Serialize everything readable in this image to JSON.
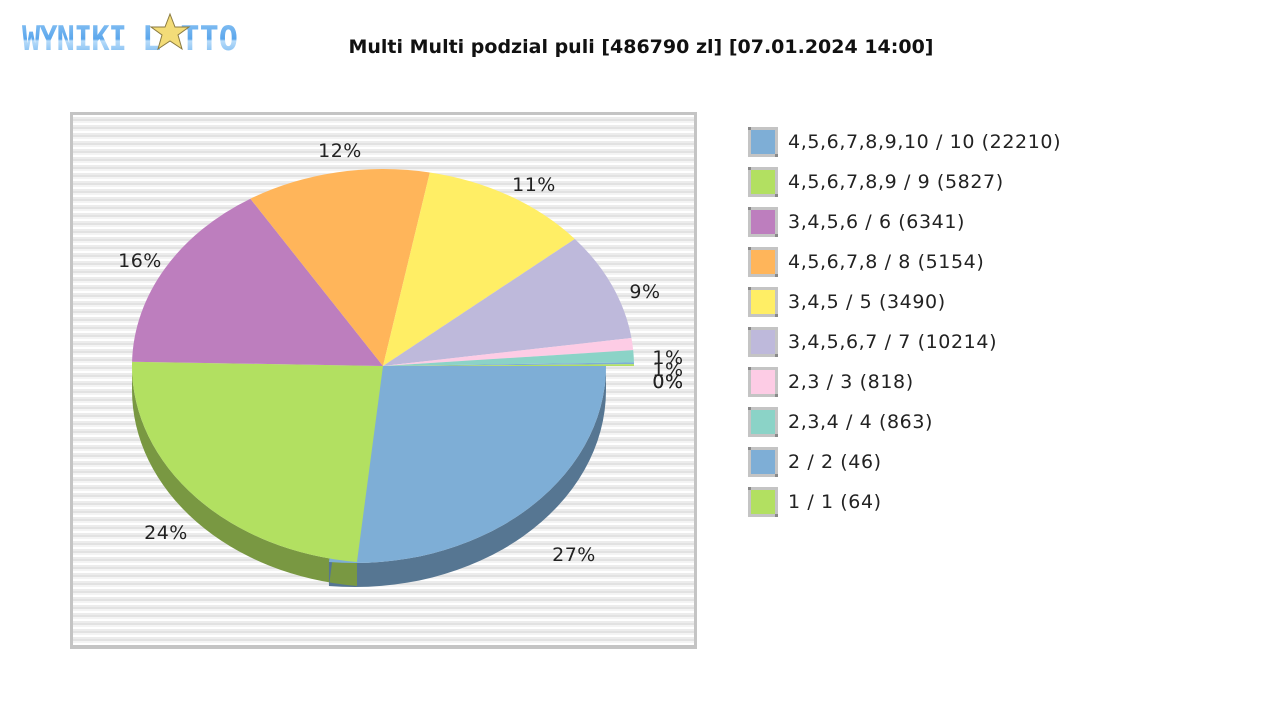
{
  "header": {
    "logo_text": "WYNIKI LOTTO",
    "title": "Multi Multi podzial puli [486790 zl] [07.01.2024 14:00]"
  },
  "chart_data": {
    "type": "pie",
    "title": "Multi Multi podzial puli [486790 zl] [07.01.2024 14:00]",
    "style": "3d-exploded-first-slice",
    "legend_position": "right",
    "categories": [
      "4,5,6,7,8,9,10 / 10 (22210)",
      "4,5,6,7,8,9 / 9 (5827)",
      "3,4,5,6 / 6 (6341)",
      "4,5,6,7,8 / 8 (5154)",
      "3,4,5 / 5 (3490)",
      "3,4,5,6,7 / 7 (10214)",
      "2,3 / 3 (818)",
      "2,3,4 / 4 (863)",
      "2 / 2 (46)",
      "1 / 1 (64)"
    ],
    "values": [
      27,
      24,
      16,
      12,
      11,
      9,
      1,
      1,
      0,
      0
    ],
    "value_labels": [
      "27%",
      "24%",
      "16%",
      "12%",
      "11%",
      "9%",
      "1%",
      "1%",
      "0%",
      "0%"
    ],
    "colors": [
      "#7eaed6",
      "#b2e061",
      "#bd7ebe",
      "#ffb55a",
      "#ffee65",
      "#beb9db",
      "#fdcce5",
      "#8bd3c7",
      "#7eaed6",
      "#b2e061"
    ]
  },
  "legend": [
    {
      "label": "4,5,6,7,8,9,10 / 10 (22210)",
      "color": "#7eaed6"
    },
    {
      "label": "4,5,6,7,8,9 / 9 (5827)",
      "color": "#b2e061"
    },
    {
      "label": "3,4,5,6 / 6 (6341)",
      "color": "#bd7ebe"
    },
    {
      "label": "4,5,6,7,8 / 8 (5154)",
      "color": "#ffb55a"
    },
    {
      "label": "3,4,5 / 5 (3490)",
      "color": "#ffee65"
    },
    {
      "label": "3,4,5,6,7 / 7 (10214)",
      "color": "#beb9db"
    },
    {
      "label": "2,3 / 3 (818)",
      "color": "#fdcce5"
    },
    {
      "label": "2,3,4 / 4 (863)",
      "color": "#8bd3c7"
    },
    {
      "label": "2 / 2 (46)",
      "color": "#7eaed6"
    },
    {
      "label": "1 / 1 (64)",
      "color": "#b2e061"
    }
  ]
}
